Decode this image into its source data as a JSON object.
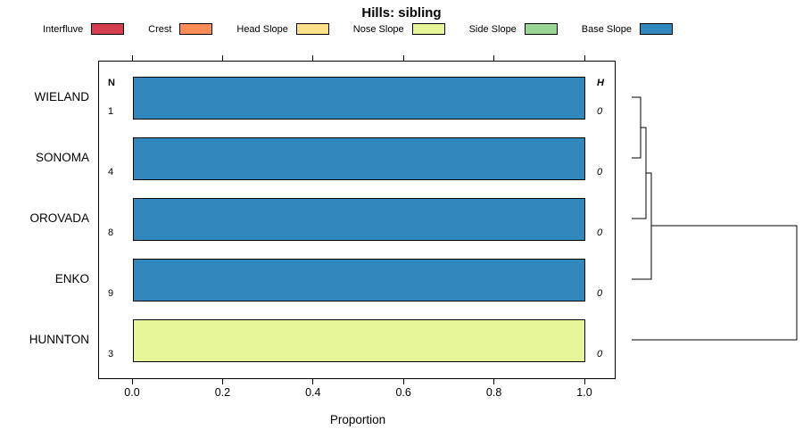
{
  "title": "Hills: sibling",
  "legend": [
    {
      "label": "Interfluve",
      "color": "#D53E4F"
    },
    {
      "label": "Crest",
      "color": "#FC8D59"
    },
    {
      "label": "Head Slope",
      "color": "#FEE08B"
    },
    {
      "label": "Nose Slope",
      "color": "#E6F598"
    },
    {
      "label": "Side Slope",
      "color": "#99D594"
    },
    {
      "label": "Base Slope",
      "color": "#3288BD"
    }
  ],
  "axis": {
    "ticks": [
      "0.0",
      "0.2",
      "0.4",
      "0.6",
      "0.8",
      "1.0"
    ],
    "xlabel": "Proportion",
    "n_header": "N",
    "h_header": "H"
  },
  "chart_data": {
    "type": "bar",
    "orientation": "horizontal",
    "title": "Hills: sibling",
    "xlabel": "Proportion",
    "xlim": [
      0,
      1
    ],
    "categories": [
      "WIELAND",
      "SONOMA",
      "OROVADA",
      "ENKO",
      "HUNNTON"
    ],
    "series": [
      {
        "name": "Base Slope",
        "values": [
          1.0,
          1.0,
          1.0,
          1.0,
          0.0
        ]
      },
      {
        "name": "Nose Slope",
        "values": [
          0.0,
          0.0,
          0.0,
          0.0,
          1.0
        ]
      }
    ],
    "n_values": [
      1,
      4,
      8,
      9,
      3
    ],
    "h_values": [
      0,
      0,
      0,
      0,
      0
    ],
    "rows": [
      {
        "label": "WIELAND",
        "n": "1",
        "h": "0",
        "segments": [
          {
            "class_name": "Base Slope",
            "proportion": 1.0
          }
        ]
      },
      {
        "label": "SONOMA",
        "n": "4",
        "h": "0",
        "segments": [
          {
            "class_name": "Base Slope",
            "proportion": 1.0
          }
        ]
      },
      {
        "label": "OROVADA",
        "n": "8",
        "h": "0",
        "segments": [
          {
            "class_name": "Base Slope",
            "proportion": 1.0
          }
        ]
      },
      {
        "label": "ENKO",
        "n": "9",
        "h": "0",
        "segments": [
          {
            "class_name": "Base Slope",
            "proportion": 1.0
          }
        ]
      },
      {
        "label": "HUNNTON",
        "n": "3",
        "h": "0",
        "segments": [
          {
            "class_name": "Nose Slope",
            "proportion": 1.0
          }
        ]
      }
    ],
    "dendrogram": {
      "position": "right-margin",
      "leaf_order": [
        "WIELAND",
        "SONOMA",
        "OROVADA",
        "ENKO",
        "HUNNTON"
      ],
      "structure": "((((WIELAND,SONOMA),OROVADA),ENKO),HUNNTON)",
      "note": "first three merges at near-zero height; final merge with HUNNTON at maximum height"
    }
  }
}
